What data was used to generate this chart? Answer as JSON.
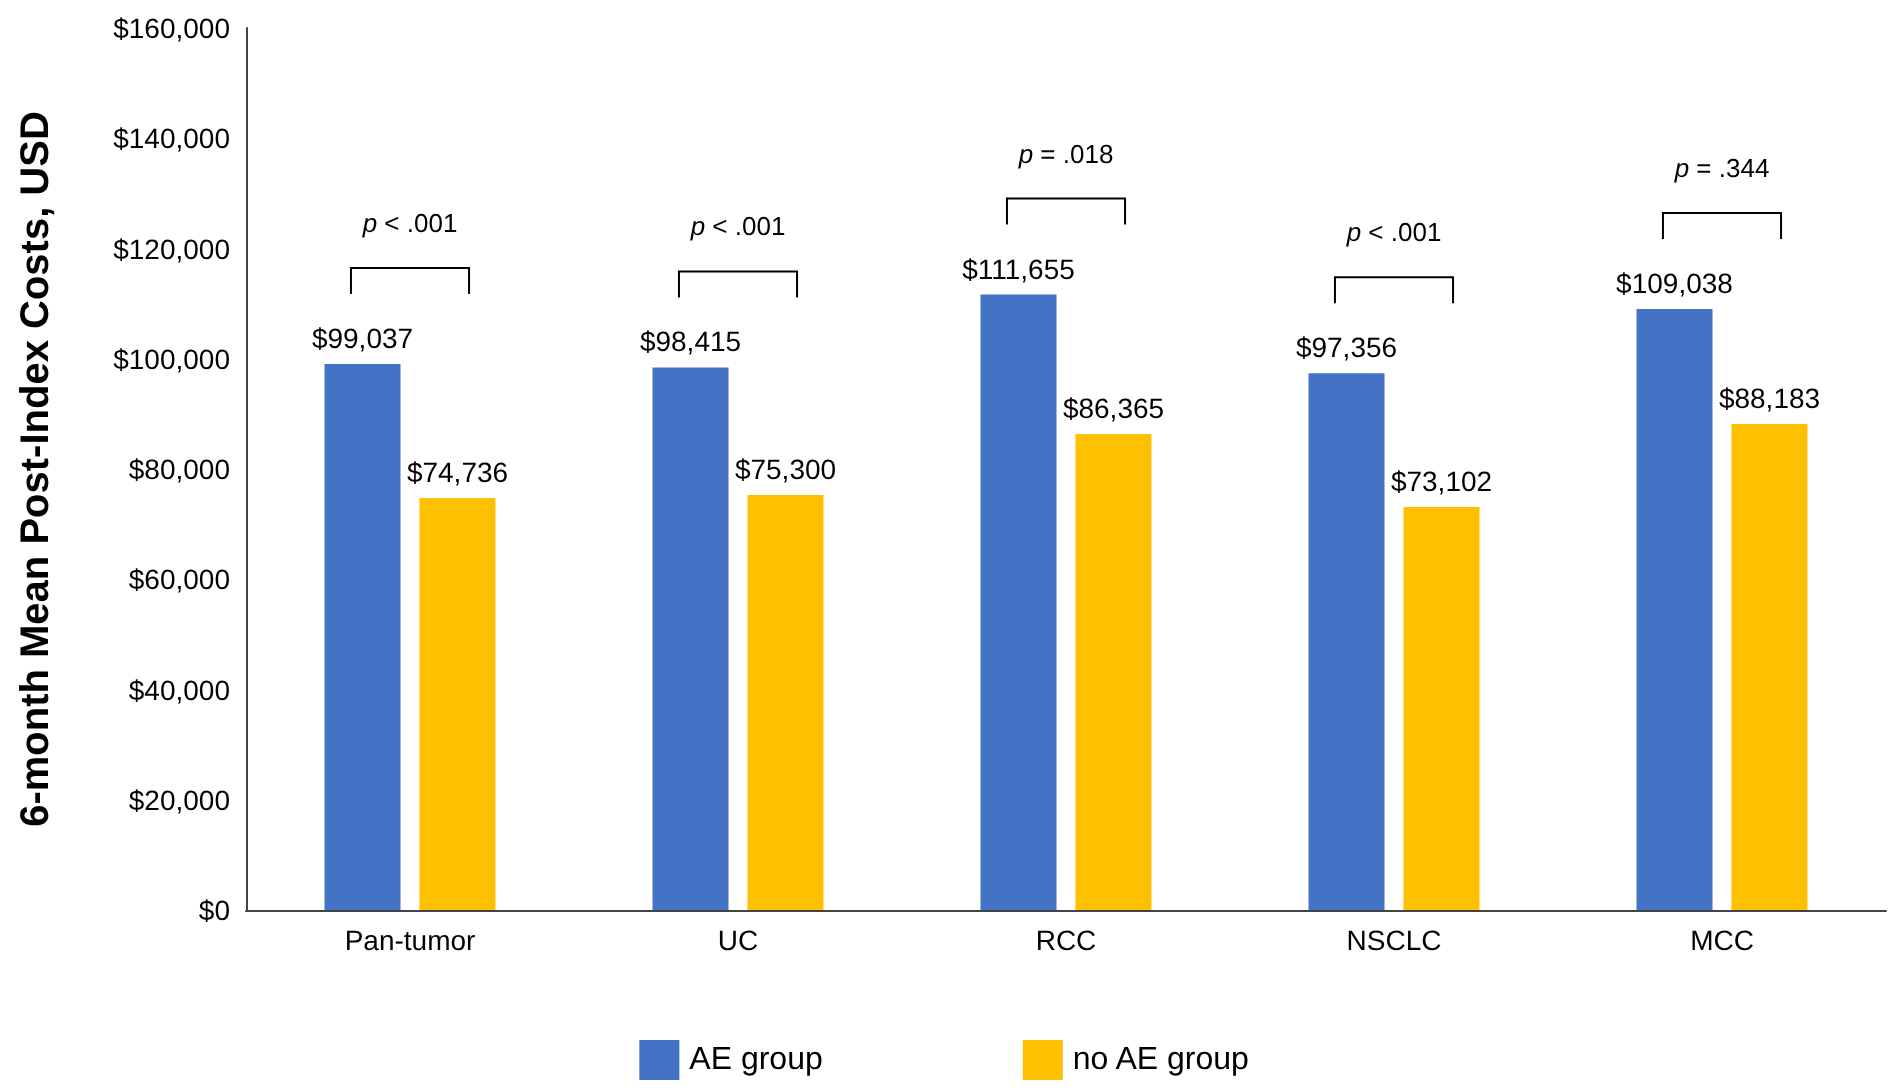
{
  "chart_data": {
    "type": "bar",
    "ylabel": "6-month Mean Post-Index Costs, USD",
    "categories": [
      "Pan-tumor",
      "UC",
      "RCC",
      "NSCLC",
      "MCC"
    ],
    "series": [
      {
        "name": "AE group",
        "color": "#4472c4",
        "values": [
          99037,
          98415,
          111655,
          97356,
          109038
        ],
        "value_labels": [
          "$99,037",
          "$98,415",
          "$111,655",
          "$97,356",
          "$109,038"
        ]
      },
      {
        "name": "no AE group",
        "color": "#ffc000",
        "values": [
          74736,
          75300,
          86365,
          73102,
          88183
        ],
        "value_labels": [
          "$74,736",
          "$75,300",
          "$86,365",
          "$73,102",
          "$88,183"
        ]
      }
    ],
    "ylim": [
      0,
      160000
    ],
    "yticks": [
      {
        "value": 0,
        "label": "$0"
      },
      {
        "value": 20000,
        "label": "$20,000"
      },
      {
        "value": 40000,
        "label": "$40,000"
      },
      {
        "value": 60000,
        "label": "$60,000"
      },
      {
        "value": 80000,
        "label": "$80,000"
      },
      {
        "value": 100000,
        "label": "$100,000"
      },
      {
        "value": 120000,
        "label": "$120,000"
      },
      {
        "value": 140000,
        "label": "$140,000"
      },
      {
        "value": 160000,
        "label": "$160,000"
      }
    ],
    "annotations": [
      "p < .001",
      "p < .001",
      "p = .018",
      "p < .001",
      "p = .344"
    ],
    "grid": false,
    "legend": "bottom"
  }
}
